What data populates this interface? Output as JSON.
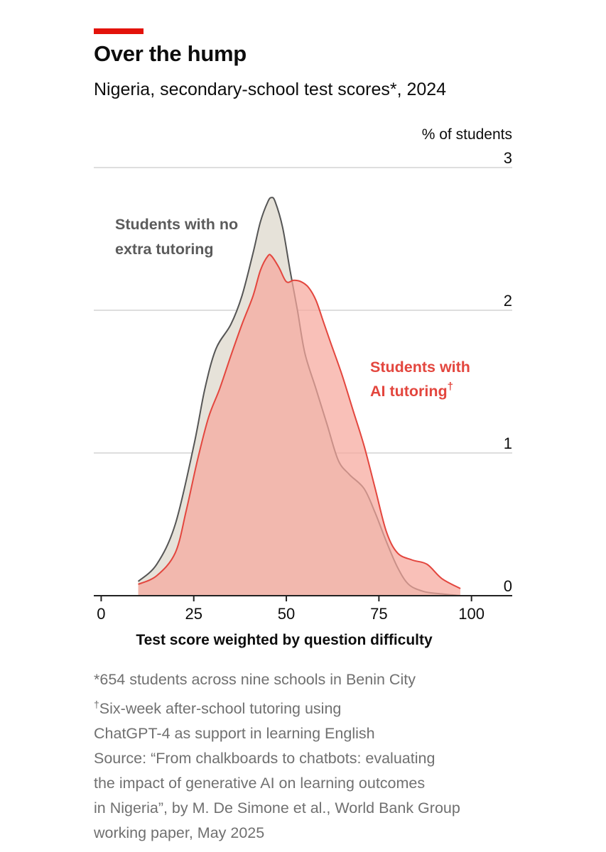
{
  "header": {
    "title": "Over the hump",
    "subtitle": "Nigeria, secondary-school test scores*, 2024"
  },
  "chart_data": {
    "type": "area",
    "unit_label": "% of students",
    "xlabel": "Test score weighted by question difficulty",
    "xlim": [
      -2,
      111
    ],
    "ylim": [
      0,
      3
    ],
    "x_ticks": [
      "0",
      "25",
      "50",
      "75",
      "100"
    ],
    "y_ticks": [
      "0",
      "1",
      "2",
      "3"
    ],
    "grid": "horizontal",
    "series": [
      {
        "name": "Students with no extra tutoring",
        "color": "#e6e2d9",
        "stroke": "#555555",
        "points": [
          [
            10,
            0.1
          ],
          [
            15,
            0.22
          ],
          [
            20,
            0.5
          ],
          [
            25,
            1.05
          ],
          [
            28,
            1.45
          ],
          [
            31,
            1.73
          ],
          [
            35,
            1.9
          ],
          [
            38,
            2.1
          ],
          [
            41,
            2.4
          ],
          [
            43,
            2.62
          ],
          [
            45,
            2.76
          ],
          [
            46,
            2.79
          ],
          [
            47,
            2.76
          ],
          [
            49,
            2.58
          ],
          [
            51,
            2.28
          ],
          [
            53,
            2.0
          ],
          [
            55,
            1.7
          ],
          [
            58,
            1.45
          ],
          [
            61,
            1.2
          ],
          [
            64,
            0.95
          ],
          [
            67,
            0.85
          ],
          [
            71,
            0.75
          ],
          [
            74,
            0.58
          ],
          [
            77,
            0.38
          ],
          [
            80,
            0.2
          ],
          [
            83,
            0.08
          ],
          [
            87,
            0.03
          ],
          [
            91,
            0.015
          ],
          [
            97,
            0.0
          ]
        ]
      },
      {
        "name": "Students with AI tutoring",
        "color": "#f6a79c",
        "stroke": "#e3463e",
        "points": [
          [
            10,
            0.08
          ],
          [
            15,
            0.14
          ],
          [
            20,
            0.3
          ],
          [
            23,
            0.6
          ],
          [
            26,
            0.95
          ],
          [
            29,
            1.25
          ],
          [
            32,
            1.45
          ],
          [
            35,
            1.68
          ],
          [
            38,
            1.9
          ],
          [
            41,
            2.1
          ],
          [
            43,
            2.28
          ],
          [
            45,
            2.38
          ],
          [
            46,
            2.38
          ],
          [
            48,
            2.3
          ],
          [
            50,
            2.2
          ],
          [
            52,
            2.21
          ],
          [
            54,
            2.2
          ],
          [
            56,
            2.16
          ],
          [
            58,
            2.07
          ],
          [
            60,
            1.92
          ],
          [
            62,
            1.77
          ],
          [
            65,
            1.55
          ],
          [
            68,
            1.3
          ],
          [
            71,
            1.05
          ],
          [
            74,
            0.75
          ],
          [
            77,
            0.45
          ],
          [
            80,
            0.3
          ],
          [
            84,
            0.25
          ],
          [
            88,
            0.22
          ],
          [
            92,
            0.12
          ],
          [
            97,
            0.05
          ]
        ]
      }
    ],
    "annotations": {
      "no_tutoring": [
        "Students with no",
        "extra tutoring"
      ],
      "ai_line1": "Students with",
      "ai_line2": "AI tutoring",
      "ai_mark": "†"
    }
  },
  "footnotes": {
    "star": "*654 students across nine schools in Benin City",
    "dagger_mark": "†",
    "dagger_line1": "Six-week after-school tutoring using",
    "dagger_line2": "ChatGPT-4 as support in learning English",
    "source_lines": [
      "Source: “From chalkboards to chatbots: evaluating",
      "the impact of generative AI on learning outcomes",
      "in Nigeria”, by M. De Simone et al., World Bank Group",
      "working paper, May 2025"
    ]
  }
}
